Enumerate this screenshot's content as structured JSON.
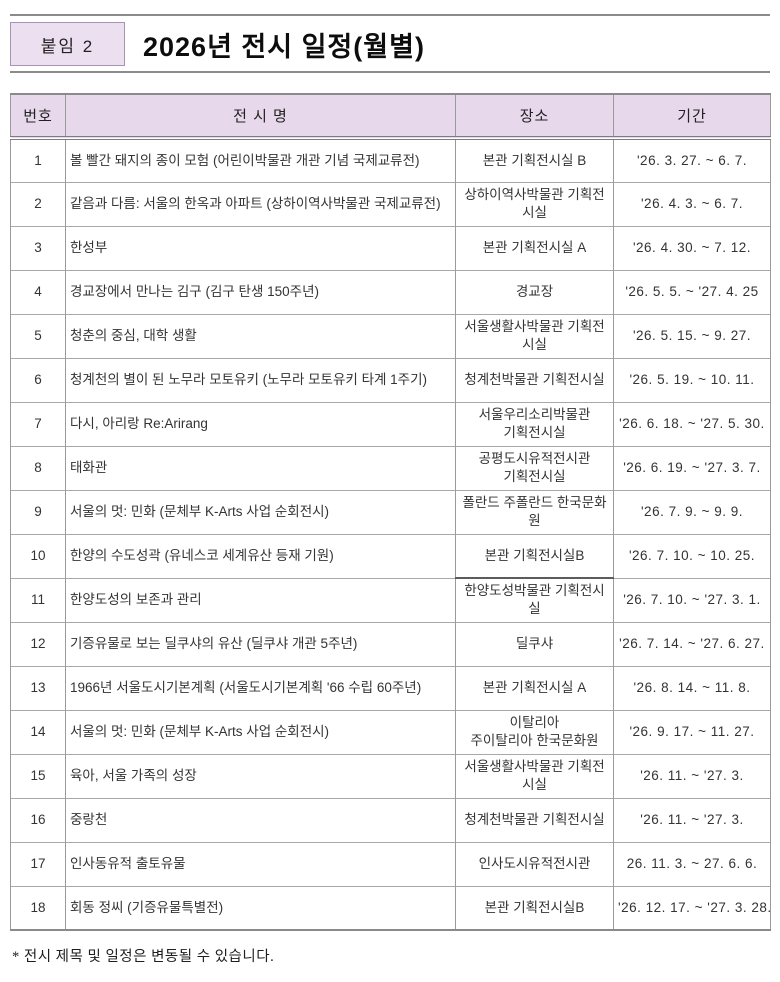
{
  "attachment_label": "붙임 2",
  "title": "2026년 전시 일정(월별)",
  "table": {
    "headers": [
      "번호",
      "전 시 명",
      "장소",
      "기간"
    ],
    "rows": [
      {
        "no": "1",
        "name": "볼 빨간 돼지의 종이 모험 (어린이박물관 개관 기념 국제교류전)",
        "place": "본관 기획전시실 B",
        "period": "'26. 3. 27. ~ 6. 7."
      },
      {
        "no": "2",
        "name": "같음과 다름: 서울의 한옥과 아파트 (상하이역사박물관 국제교류전)",
        "place": "상하이역사박물관 기획전시실",
        "period": "'26. 4. 3. ~ 6. 7."
      },
      {
        "no": "3",
        "name": "한성부",
        "place": "본관 기획전시실 A",
        "period": "'26. 4. 30. ~ 7. 12."
      },
      {
        "no": "4",
        "name": "경교장에서 만나는 김구 (김구 탄생 150주년)",
        "place": "경교장",
        "period": "'26. 5. 5. ~ '27. 4. 25"
      },
      {
        "no": "5",
        "name": "청춘의 중심, 대학 생활",
        "place": "서울생활사박물관 기획전시실",
        "period": "'26. 5. 15. ~ 9. 27."
      },
      {
        "no": "6",
        "name": "청계천의 별이 된 노무라 모토유키 (노무라 모토유키 타계 1주기)",
        "place": "청계천박물관 기획전시실",
        "period": "'26. 5. 19. ~ 10. 11."
      },
      {
        "no": "7",
        "name": "다시, 아리랑 Re:Arirang",
        "place": "서울우리소리박물관\n기획전시실",
        "period": "'26. 6. 18. ~ '27. 5. 30."
      },
      {
        "no": "8",
        "name": "태화관",
        "place": "공평도시유적전시관\n기획전시실",
        "period": "'26. 6. 19. ~ '27. 3. 7."
      },
      {
        "no": "9",
        "name": "서울의 멋: 민화 (문체부 K-Arts 사업 순회전시)",
        "place": "폴란드 주폴란드 한국문화원",
        "period": "'26. 7. 9. ~ 9. 9."
      },
      {
        "no": "10",
        "name": "한양의 수도성곽 (유네스코 세계유산 등재 기원)",
        "place": "본관 기획전시실B",
        "period": "'26. 7. 10. ~ 10. 25.",
        "place_border_bold": true
      },
      {
        "no": "11",
        "name": "한양도성의 보존과 관리",
        "place": "한양도성박물관 기획전시실",
        "period": "'26. 7. 10. ~ '27. 3. 1."
      },
      {
        "no": "12",
        "name": "기증유물로 보는 딜쿠샤의 유산 (딜쿠샤 개관 5주년)",
        "place": "딜쿠샤",
        "period": "'26. 7. 14. ~ '27. 6. 27."
      },
      {
        "no": "13",
        "name": "1966년 서울도시기본계획 (서울도시기본계획 '66 수립 60주년)",
        "place": "본관 기획전시실 A",
        "period": "'26. 8. 14. ~ 11. 8."
      },
      {
        "no": "14",
        "name": "서울의 멋: 민화 (문체부 K-Arts 사업 순회전시)",
        "place": "이탈리아\n주이탈리아 한국문화원",
        "period": "'26. 9. 17. ~ 11. 27."
      },
      {
        "no": "15",
        "name": "육아, 서울 가족의 성장",
        "place": "서울생활사박물관 기획전시실",
        "period": "'26. 11. ~ '27. 3."
      },
      {
        "no": "16",
        "name": "중랑천",
        "place": "청계천박물관 기획전시실",
        "period": "'26. 11. ~ '27. 3."
      },
      {
        "no": "17",
        "name": "인사동유적 출토유물",
        "place": "인사도시유적전시관",
        "period": "26. 11. 3. ~ 27. 6. 6."
      },
      {
        "no": "18",
        "name": "회동 정씨 (기증유물특별전)",
        "place": "본관 기획전시실B",
        "period": "'26. 12. 17. ~ '27. 3. 28."
      }
    ]
  },
  "footnote": "* 전시 제목 및 일정은 변동될 수 있습니다.",
  "colors": {
    "header_fill": "#e7d9eb",
    "attachment_box_fill": "#ecdff0",
    "attachment_box_border": "#a893b5",
    "rule_gray": "#8b8b8b"
  }
}
